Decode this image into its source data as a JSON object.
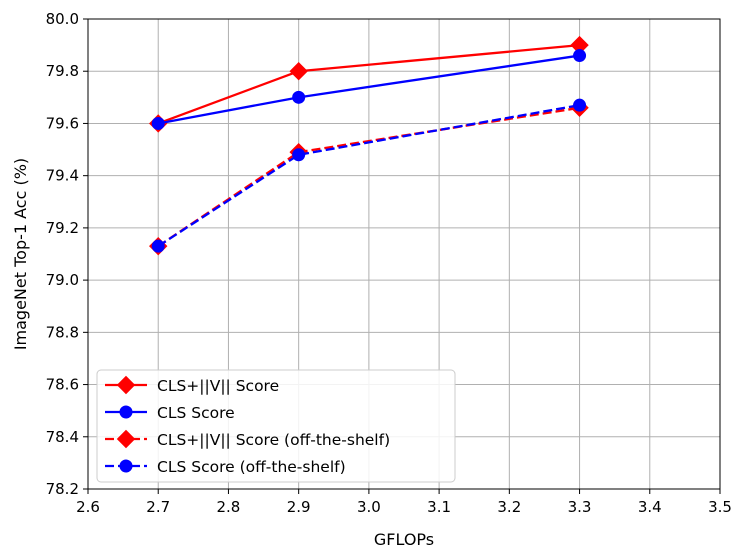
{
  "chart_data": {
    "type": "line",
    "title": "",
    "xlabel": "GFLOPs",
    "ylabel": "ImageNet Top-1 Acc (%)",
    "xlim": [
      2.6,
      3.5
    ],
    "ylim": [
      78.2,
      80.0
    ],
    "xticks": [
      2.6,
      2.7,
      2.8,
      2.9,
      3.0,
      3.1,
      3.2,
      3.3,
      3.4,
      3.5
    ],
    "xtick_labels": [
      "2.6",
      "2.7",
      "2.8",
      "2.9",
      "3.0",
      "3.1",
      "3.2",
      "3.3",
      "3.4",
      "3.5"
    ],
    "yticks": [
      78.2,
      78.4,
      78.6,
      78.8,
      79.0,
      79.2,
      79.4,
      79.6,
      79.8,
      80.0
    ],
    "ytick_labels": [
      "78.2",
      "78.4",
      "78.6",
      "78.8",
      "79.0",
      "79.2",
      "79.4",
      "79.6",
      "79.8",
      "80.0"
    ],
    "grid": true,
    "legend_position": "lower-left",
    "series": [
      {
        "name": "CLS+||V|| Score",
        "x": [
          2.7,
          2.9,
          3.3
        ],
        "y": [
          79.6,
          79.8,
          79.9
        ],
        "color": "#ff0000",
        "marker": "diamond",
        "linestyle": "solid"
      },
      {
        "name": "CLS Score",
        "x": [
          2.7,
          2.9,
          3.3
        ],
        "y": [
          79.6,
          79.7,
          79.86
        ],
        "color": "#0000ff",
        "marker": "circle",
        "linestyle": "solid"
      },
      {
        "name": "CLS+||V|| Score (off-the-shelf)",
        "x": [
          2.7,
          2.9,
          3.3
        ],
        "y": [
          79.13,
          79.49,
          79.66
        ],
        "color": "#ff0000",
        "marker": "diamond",
        "linestyle": "dashed"
      },
      {
        "name": "CLS Score (off-the-shelf)",
        "x": [
          2.7,
          2.9,
          3.3
        ],
        "y": [
          79.13,
          79.48,
          79.67
        ],
        "color": "#0000ff",
        "marker": "circle",
        "linestyle": "dashed"
      }
    ]
  }
}
